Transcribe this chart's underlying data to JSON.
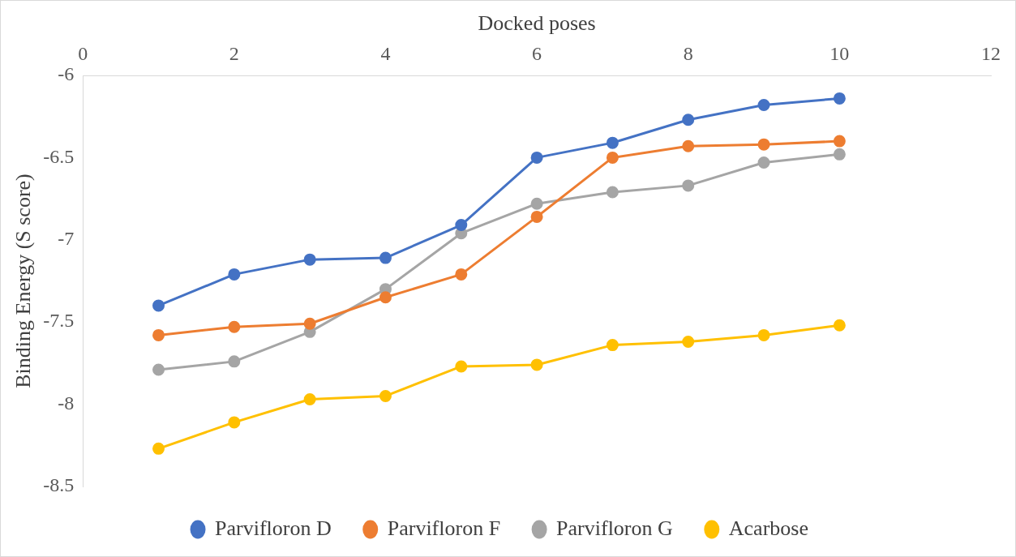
{
  "chart_data": {
    "type": "line",
    "xlabel": "Docked poses",
    "ylabel": "Binding Energy (S score)",
    "x": [
      1,
      2,
      3,
      4,
      5,
      6,
      7,
      8,
      9,
      10
    ],
    "series": [
      {
        "name": "Parvifloron D",
        "color": "#4472c4",
        "values": [
          -7.4,
          -7.21,
          -7.12,
          -7.11,
          -6.91,
          -6.5,
          -6.41,
          -6.27,
          -6.18,
          -6.14
        ]
      },
      {
        "name": "Parvifloron F",
        "color": "#ed7d31",
        "values": [
          -7.58,
          -7.53,
          -7.51,
          -7.35,
          -7.21,
          -6.86,
          -6.5,
          -6.43,
          -6.42,
          -6.4
        ]
      },
      {
        "name": "Parvifloron G",
        "color": "#a5a5a5",
        "values": [
          -7.79,
          -7.74,
          -7.56,
          -7.3,
          -6.96,
          -6.78,
          -6.71,
          -6.67,
          -6.53,
          -6.48
        ]
      },
      {
        "name": "Acarbose",
        "color": "#ffc000",
        "values": [
          -8.27,
          -8.11,
          -7.97,
          -7.95,
          -7.77,
          -7.76,
          -7.64,
          -7.62,
          -7.58,
          -7.52
        ]
      }
    ],
    "xlim": [
      0,
      12
    ],
    "xticks": [
      0,
      2,
      4,
      6,
      8,
      10,
      12
    ],
    "ylim": [
      -8.5,
      -6
    ],
    "yticks": [
      -8.5,
      -8,
      -7.5,
      -7,
      -6.5,
      -6
    ],
    "grid": false,
    "legend": "bottom",
    "marker": "circle",
    "line_style": "solid"
  }
}
